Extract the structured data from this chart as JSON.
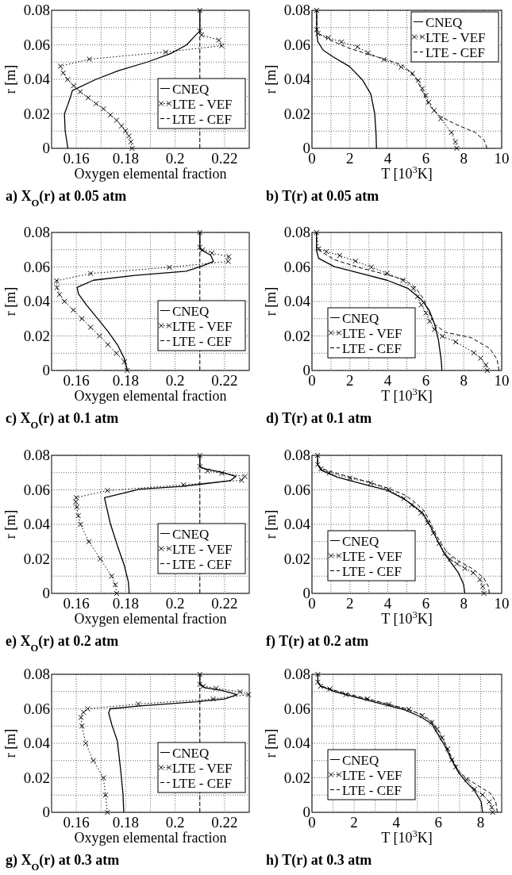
{
  "chart_data": [
    {
      "type": "line",
      "title": "a) X$_{O}$(r) at 0.05 atm",
      "xlabel": "Oxygen elemental fraction",
      "ylabel": "r [m]",
      "xlim": [
        0.15,
        0.23
      ],
      "ylim": [
        0,
        0.08
      ],
      "xticks": [
        0.16,
        {
          "value": 0.17,
          "label": null
        },
        0.18,
        {
          "value": 0.19,
          "label": null
        },
        0.2,
        {
          "value": 0.21,
          "label": null
        },
        0.22
      ],
      "yticks": [
        0,
        {
          "value": 0.01,
          "label": null
        },
        0.02,
        {
          "value": 0.03,
          "label": null
        },
        0.04,
        {
          "value": 0.05,
          "label": null
        },
        0.06,
        {
          "value": 0.07,
          "label": null
        },
        0.08
      ],
      "grid": true,
      "legend": "right",
      "series": [
        {
          "name": "CNEQ",
          "color": "#000000",
          "line_style": "solid",
          "marker": "none",
          "x": [
            0.1566,
            0.1555,
            0.1552,
            0.1565,
            0.1577,
            0.1584,
            0.168,
            0.177,
            0.1887,
            0.1983,
            0.2047,
            0.2079,
            0.21,
            0.21
          ],
          "values": [
            0,
            0.01,
            0.02,
            0.025,
            0.03,
            0.0335,
            0.04,
            0.045,
            0.05,
            0.055,
            0.06,
            0.065,
            0.068,
            0.08
          ]
        },
        {
          "name": "LTE - VEF",
          "color": "#000000",
          "line_style": "dotted",
          "marker": "cross",
          "x": [
            0.1826,
            0.1821,
            0.1813,
            0.1799,
            0.1783,
            0.1763,
            0.1738,
            0.171,
            0.168,
            0.1648,
            0.1616,
            0.1589,
            0.1565,
            0.1547,
            0.1536,
            0.1653,
            0.1962,
            0.2188,
            0.2177,
            0.2107,
            0.21,
            0.21
          ],
          "values": [
            0,
            0.0038,
            0.0072,
            0.0102,
            0.013,
            0.0163,
            0.0194,
            0.0229,
            0.0259,
            0.0293,
            0.0328,
            0.0363,
            0.0399,
            0.0437,
            0.0476,
            0.0517,
            0.0558,
            0.0595,
            0.0627,
            0.0657,
            0.068,
            0.08
          ]
        },
        {
          "name": "LTE - CEF",
          "color": "#000000",
          "line_style": "dashed",
          "marker": "none",
          "x": [
            0.21,
            0.21
          ],
          "values": [
            0,
            0.08
          ]
        }
      ]
    },
    {
      "type": "line",
      "title": "b) T(r) at 0.05 atm",
      "xlabel": "T [10$^{3}$K]",
      "ylabel": "r [m]",
      "xlim": [
        0,
        10
      ],
      "ylim": [
        0,
        0.08
      ],
      "xticks": [
        0,
        {
          "value": 1,
          "label": null
        },
        2,
        {
          "value": 3,
          "label": null
        },
        4,
        {
          "value": 5,
          "label": null
        },
        6,
        {
          "value": 7,
          "label": null
        },
        8,
        {
          "value": 9,
          "label": null
        },
        10
      ],
      "yticks": [
        0,
        {
          "value": 0.01,
          "label": null
        },
        0.02,
        {
          "value": 0.03,
          "label": null
        },
        0.04,
        {
          "value": 0.05,
          "label": null
        },
        0.06,
        {
          "value": 0.07,
          "label": null
        },
        0.08
      ],
      "grid": true,
      "legend": "top right",
      "series": [
        {
          "name": "CNEQ",
          "color": "#000000",
          "line_style": "solid",
          "marker": "none",
          "x": [
            3.4,
            3.38,
            3.31,
            3.1,
            2.68,
            1.98,
            1.14,
            0.59,
            0.3,
            0.25,
            0.25
          ],
          "values": [
            0,
            0.0076,
            0.02,
            0.0315,
            0.0394,
            0.0474,
            0.0529,
            0.0569,
            0.062,
            0.068,
            0.08
          ]
        },
        {
          "name": "LTE - VEF",
          "color": "#000000",
          "line_style": "dotted",
          "marker": "cross",
          "x": [
            7.63,
            7.56,
            7.35,
            6.79,
            6.44,
            6.16,
            6.0,
            5.82,
            5.61,
            5.3,
            4.7,
            3.79,
            2.96,
            2.4,
            1.56,
            0.86,
            0.31,
            0.25,
            0.25
          ],
          "values": [
            0,
            0.0037,
            0.0092,
            0.0172,
            0.0219,
            0.0267,
            0.0307,
            0.0347,
            0.0394,
            0.0434,
            0.0471,
            0.0514,
            0.0553,
            0.0588,
            0.0617,
            0.0641,
            0.0665,
            0.0688,
            0.08
          ]
        },
        {
          "name": "LTE - CEF",
          "color": "#000000",
          "line_style": "dashed",
          "marker": "none",
          "x": [
            9.23,
            9.09,
            8.61,
            7.56,
            6.72,
            6.16,
            5.89,
            5.54,
            5.19,
            4.77,
            3.93,
            2.96,
            1.84,
            0.86,
            0.31,
            0.25,
            0.25
          ],
          "values": [
            0,
            0.0045,
            0.0092,
            0.014,
            0.0188,
            0.0251,
            0.0315,
            0.0394,
            0.0442,
            0.0482,
            0.0514,
            0.0545,
            0.0585,
            0.0633,
            0.0668,
            0.07,
            0.08
          ]
        }
      ]
    },
    {
      "type": "line",
      "title": "c) X$_{O}$(r) at 0.1 atm",
      "xlabel": "Oxygen elemental fraction",
      "ylabel": "r [m]",
      "xlim": [
        0.15,
        0.23
      ],
      "ylim": [
        0,
        0.08
      ],
      "xticks": [
        0.16,
        {
          "value": 0.17,
          "label": null
        },
        0.18,
        {
          "value": 0.19,
          "label": null
        },
        0.2,
        {
          "value": 0.21,
          "label": null
        },
        0.22
      ],
      "yticks": [
        0,
        {
          "value": 0.01,
          "label": null
        },
        0.02,
        {
          "value": 0.03,
          "label": null
        },
        0.04,
        {
          "value": 0.05,
          "label": null
        },
        0.06,
        {
          "value": 0.07,
          "label": null
        },
        0.08
      ],
      "grid": true,
      "legend": "right",
      "series": [
        {
          "name": "CNEQ",
          "color": "#000000",
          "line_style": "solid",
          "marker": "none",
          "x": [
            0.1807,
            0.1794,
            0.1767,
            0.1729,
            0.1685,
            0.1641,
            0.1609,
            0.1603,
            0.1669,
            0.1838,
            0.2045,
            0.2111,
            0.2155,
            0.2144,
            0.2105,
            0.21,
            0.21
          ],
          "values": [
            0,
            0.007,
            0.0148,
            0.0225,
            0.0303,
            0.038,
            0.0443,
            0.0481,
            0.0523,
            0.0551,
            0.0575,
            0.0606,
            0.0632,
            0.0668,
            0.0699,
            0.0714,
            0.08
          ]
        },
        {
          "name": "LTE - VEF",
          "color": "#000000",
          "line_style": "dotted",
          "marker": "cross",
          "x": [
            0.1806,
            0.1795,
            0.1762,
            0.1728,
            0.1694,
            0.1658,
            0.1623,
            0.1588,
            0.1552,
            0.1532,
            0.1522,
            0.152,
            0.1658,
            0.1977,
            0.2215,
            0.2217,
            0.2149,
            0.2111,
            0.21,
            0.21
          ],
          "values": [
            0,
            0.005,
            0.01,
            0.015,
            0.02,
            0.025,
            0.03,
            0.035,
            0.04,
            0.044,
            0.048,
            0.052,
            0.0562,
            0.0598,
            0.0632,
            0.066,
            0.068,
            0.0699,
            0.0714,
            0.08
          ]
        },
        {
          "name": "LTE - CEF",
          "color": "#000000",
          "line_style": "dashed",
          "marker": "none",
          "x": [
            0.21,
            0.21
          ],
          "values": [
            0,
            0.08
          ]
        }
      ]
    },
    {
      "type": "line",
      "title": "d) T(r) at 0.1 atm",
      "xlabel": "T [10$^{3}$K]",
      "ylabel": "r [m]",
      "xlim": [
        0,
        10
      ],
      "ylim": [
        0,
        0.08
      ],
      "xticks": [
        0,
        {
          "value": 1,
          "label": null
        },
        2,
        {
          "value": 3,
          "label": null
        },
        4,
        {
          "value": 5,
          "label": null
        },
        6,
        {
          "value": 7,
          "label": null
        },
        8,
        {
          "value": 9,
          "label": null
        },
        10
      ],
      "yticks": [
        0,
        {
          "value": 0.01,
          "label": null
        },
        0.02,
        {
          "value": 0.03,
          "label": null
        },
        0.04,
        {
          "value": 0.05,
          "label": null
        },
        0.06,
        {
          "value": 0.07,
          "label": null
        },
        0.08
      ],
      "grid": true,
      "legend": "bottom left",
      "series": [
        {
          "name": "CNEQ",
          "color": "#000000",
          "line_style": "solid",
          "marker": "none",
          "x": [
            6.85,
            6.81,
            6.67,
            6.46,
            6.18,
            5.76,
            5.07,
            3.96,
            2.57,
            1.18,
            0.35,
            0.24,
            0.24
          ],
          "values": [
            0,
            0.0063,
            0.0174,
            0.0269,
            0.0349,
            0.0412,
            0.0475,
            0.0523,
            0.0563,
            0.0602,
            0.065,
            0.0697,
            0.08
          ]
        },
        {
          "name": "LTE - VEF",
          "color": "#000000",
          "line_style": "dotted",
          "marker": "cross",
          "x": [
            9.24,
            9.17,
            8.89,
            8.54,
            7.57,
            6.88,
            6.46,
            6.21,
            6.01,
            5.76,
            5.56,
            5.35,
            4.79,
            3.96,
            3.13,
            2.29,
            1.46,
            0.76,
            0.35,
            0.24
          ],
          "values": [
            0,
            0.0032,
            0.0071,
            0.0103,
            0.0166,
            0.0198,
            0.0238,
            0.0285,
            0.0333,
            0.038,
            0.0428,
            0.0475,
            0.0523,
            0.0563,
            0.0599,
            0.0634,
            0.0666,
            0.0689,
            0.0705,
            0.08
          ]
        },
        {
          "name": "LTE - CEF",
          "color": "#000000",
          "line_style": "dashed",
          "marker": "none",
          "x": [
            9.86,
            9.76,
            9.38,
            8.4,
            7.01,
            6.46,
            6.18,
            5.9,
            5.49,
            4.93,
            3.96,
            2.57,
            1.18,
            0.49,
            0.24,
            0.24
          ],
          "values": [
            0,
            0.0063,
            0.0127,
            0.019,
            0.0222,
            0.0269,
            0.0333,
            0.0412,
            0.0475,
            0.0523,
            0.0555,
            0.0594,
            0.0642,
            0.0689,
            0.0705,
            0.08
          ]
        }
      ]
    },
    {
      "type": "line",
      "title": "e) X$_{O}$(r) at 0.2 atm",
      "xlabel": "Oxygen elemental fraction",
      "ylabel": "r [m]",
      "xlim": [
        0.15,
        0.23
      ],
      "ylim": [
        0,
        0.08
      ],
      "xticks": [
        0.16,
        {
          "value": 0.17,
          "label": null
        },
        0.18,
        {
          "value": 0.19,
          "label": null
        },
        0.2,
        {
          "value": 0.21,
          "label": null
        },
        0.22
      ],
      "yticks": [
        0,
        {
          "value": 0.01,
          "label": null
        },
        0.02,
        {
          "value": 0.03,
          "label": null
        },
        0.04,
        {
          "value": 0.05,
          "label": null
        },
        0.06,
        {
          "value": 0.07,
          "label": null
        },
        0.08
      ],
      "grid": true,
      "legend": "right",
      "series": [
        {
          "name": "CNEQ",
          "color": "#000000",
          "line_style": "solid",
          "marker": "none",
          "x": [
            0.1814,
            0.1811,
            0.1794,
            0.1766,
            0.1737,
            0.1714,
            0.1857,
            0.2029,
            0.2223,
            0.2246,
            0.2189,
            0.212,
            0.21,
            0.21
          ],
          "values": [
            0,
            0.0065,
            0.0163,
            0.0278,
            0.0408,
            0.0555,
            0.0604,
            0.062,
            0.0653,
            0.0678,
            0.0702,
            0.0722,
            0.0735,
            0.08
          ]
        },
        {
          "name": "LTE - VEF",
          "color": "#000000",
          "line_style": "dotted",
          "marker": "cross",
          "x": [
            0.1763,
            0.1758,
            0.1743,
            0.1697,
            0.1651,
            0.1617,
            0.1608,
            0.1602,
            0.1598,
            0.16,
            0.1726,
            0.2034,
            0.2269,
            0.2282,
            0.2189,
            0.2131,
            0.21,
            0.21
          ],
          "values": [
            0,
            0.005,
            0.01,
            0.02,
            0.03,
            0.04,
            0.045,
            0.05,
            0.053,
            0.0555,
            0.0596,
            0.0629,
            0.0656,
            0.0678,
            0.0697,
            0.071,
            0.0735,
            0.08
          ]
        },
        {
          "name": "LTE - CEF",
          "color": "#000000",
          "line_style": "dashed",
          "marker": "none",
          "x": [
            0.21,
            0.21
          ],
          "values": [
            0,
            0.08
          ]
        }
      ]
    },
    {
      "type": "line",
      "title": "f) T(r) at 0.2 atm",
      "xlabel": "T [10$^{3}$K]",
      "ylabel": "r [m]",
      "xlim": [
        0,
        10
      ],
      "ylim": [
        0,
        0.08
      ],
      "xticks": [
        0,
        {
          "value": 1,
          "label": null
        },
        2,
        {
          "value": 3,
          "label": null
        },
        4,
        {
          "value": 5,
          "label": null
        },
        6,
        {
          "value": 7,
          "label": null
        },
        8,
        {
          "value": 9,
          "label": null
        },
        10
      ],
      "yticks": [
        0,
        {
          "value": 0.01,
          "label": null
        },
        0.02,
        {
          "value": 0.03,
          "label": null
        },
        0.04,
        {
          "value": 0.05,
          "label": null
        },
        0.06,
        {
          "value": 0.07,
          "label": null
        },
        0.08
      ],
      "grid": true,
      "legend": "bottom left",
      "series": [
        {
          "name": "CNEQ",
          "color": "#000000",
          "line_style": "solid",
          "marker": "none",
          "x": [
            8.06,
            7.99,
            7.72,
            7.29,
            7.0,
            6.64,
            6.28,
            5.84,
            5.26,
            4.83,
            3.96,
            2.8,
            1.35,
            0.48,
            0.3,
            0.3
          ],
          "values": [
            0,
            0.0053,
            0.0119,
            0.0185,
            0.0226,
            0.0301,
            0.0383,
            0.0466,
            0.0516,
            0.0549,
            0.0598,
            0.0631,
            0.0673,
            0.0714,
            0.0747,
            0.08
          ]
        },
        {
          "name": "LTE - VEF",
          "color": "#000000",
          "line_style": "dotted",
          "marker": "cross",
          "x": [
            9.06,
            9.0,
            8.85,
            8.5,
            8.06,
            7.65,
            7.29,
            7.0,
            6.7,
            6.4,
            6.1,
            5.75,
            5.25,
            4.85,
            4.03,
            3.09,
            2.0,
            0.91,
            0.48,
            0.3,
            0.3
          ],
          "values": [
            0,
            0.004,
            0.008,
            0.012,
            0.0145,
            0.0172,
            0.0198,
            0.0232,
            0.029,
            0.035,
            0.0408,
            0.0466,
            0.0512,
            0.055,
            0.0602,
            0.064,
            0.0668,
            0.0698,
            0.0722,
            0.0747,
            0.08
          ]
        },
        {
          "name": "LTE - CEF",
          "color": "#000000",
          "line_style": "dashed",
          "marker": "none",
          "x": [
            9.35,
            9.3,
            9.05,
            8.5,
            7.7,
            7.1,
            6.75,
            6.45,
            6.2,
            5.9,
            5.4,
            4.9,
            4.0,
            3.0,
            2.0,
            1.0,
            0.5,
            0.3,
            0.3
          ],
          "values": [
            0,
            0.004,
            0.009,
            0.014,
            0.019,
            0.024,
            0.03,
            0.036,
            0.042,
            0.048,
            0.053,
            0.057,
            0.061,
            0.0645,
            0.0675,
            0.0705,
            0.0725,
            0.0747,
            0.08
          ]
        }
      ]
    },
    {
      "type": "line",
      "title": "g) X$_{O}$(r) at 0.3 atm",
      "xlabel": "Oxygen elemental fraction",
      "ylabel": "r [m]",
      "xlim": [
        0.15,
        0.23
      ],
      "ylim": [
        0,
        0.08
      ],
      "xticks": [
        0.16,
        {
          "value": 0.17,
          "label": null
        },
        0.18,
        {
          "value": 0.19,
          "label": null
        },
        0.2,
        {
          "value": 0.21,
          "label": null
        },
        0.22
      ],
      "yticks": [
        0,
        {
          "value": 0.01,
          "label": null
        },
        0.02,
        {
          "value": 0.03,
          "label": null
        },
        0.04,
        {
          "value": 0.05,
          "label": null
        },
        0.06,
        {
          "value": 0.07,
          "label": null
        },
        0.08
      ],
      "grid": true,
      "legend": "right",
      "series": [
        {
          "name": "CNEQ",
          "color": "#000000",
          "line_style": "solid",
          "marker": "none",
          "x": [
            0.1792,
            0.1789,
            0.1779,
            0.1766,
            0.1743,
            0.1731,
            0.1737,
            0.1857,
            0.2086,
            0.22,
            0.2251,
            0.2189,
            0.212,
            0.21,
            0.21
          ],
          "values": [
            0,
            0.0106,
            0.0252,
            0.0414,
            0.0511,
            0.0576,
            0.06,
            0.0617,
            0.0641,
            0.0657,
            0.0682,
            0.0706,
            0.0722,
            0.0739,
            0.08
          ]
        },
        {
          "name": "LTE - VEF",
          "color": "#000000",
          "line_style": "dotted",
          "marker": "cross",
          "x": [
            0.1726,
            0.1718,
            0.171,
            0.1669,
            0.1638,
            0.1623,
            0.1619,
            0.1629,
            0.1646,
            0.1851,
            0.2154,
            0.2297,
            0.2263,
            0.2166,
            0.2114,
            0.21,
            0.21
          ],
          "values": [
            0,
            0.01,
            0.02,
            0.03,
            0.04,
            0.05,
            0.055,
            0.058,
            0.06,
            0.0628,
            0.0657,
            0.0682,
            0.0698,
            0.0719,
            0.0731,
            0.0742,
            0.08
          ]
        },
        {
          "name": "LTE - CEF",
          "color": "#000000",
          "line_style": "dashed",
          "marker": "none",
          "x": [
            0.21,
            0.21
          ],
          "values": [
            0,
            0.08
          ]
        }
      ]
    },
    {
      "type": "line",
      "title": "h) T(r) at 0.3 atm",
      "xlabel": "T [10$^{3}$K]",
      "ylabel": "r [m]",
      "xlim": [
        0,
        9
      ],
      "ylim": [
        0,
        0.08
      ],
      "xticks": [
        0,
        {
          "value": 1,
          "label": null
        },
        2,
        {
          "value": 3,
          "label": null
        },
        4,
        {
          "value": 5,
          "label": null
        },
        6,
        {
          "value": 7,
          "label": null
        },
        8
      ],
      "yticks": [
        0,
        {
          "value": 0.01,
          "label": null
        },
        0.02,
        {
          "value": 0.03,
          "label": null
        },
        0.04,
        {
          "value": 0.05,
          "label": null
        },
        0.06,
        {
          "value": 0.07,
          "label": null
        },
        0.08
      ],
      "grid": true,
      "legend": "bottom left",
      "series": [
        {
          "name": "CNEQ",
          "color": "#000000",
          "line_style": "solid",
          "marker": "none",
          "x": [
            8.09,
            8.03,
            7.71,
            7.33,
            6.95,
            6.63,
            6.31,
            6.0,
            5.68,
            5.17,
            4.41,
            3.39,
            2.37,
            1.1,
            0.41,
            0.28,
            0.28
          ],
          "values": [
            0,
            0.0061,
            0.0126,
            0.0174,
            0.0231,
            0.0303,
            0.0384,
            0.0448,
            0.0513,
            0.0553,
            0.0594,
            0.0626,
            0.0658,
            0.0698,
            0.0731,
            0.0755,
            0.08
          ]
        },
        {
          "name": "LTE - VEF",
          "color": "#000000",
          "line_style": "dotted",
          "marker": "cross",
          "x": [
            8.57,
            8.53,
            8.41,
            8.09,
            7.71,
            7.33,
            6.82,
            6.63,
            6.44,
            6.18,
            5.93,
            5.68,
            5.23,
            4.6,
            3.64,
            2.63,
            1.61,
            0.85,
            0.41,
            0.28,
            0.28
          ],
          "values": [
            0,
            0.0029,
            0.0061,
            0.0102,
            0.0134,
            0.019,
            0.0263,
            0.0303,
            0.0368,
            0.0432,
            0.0481,
            0.0521,
            0.0561,
            0.0597,
            0.0626,
            0.0658,
            0.0682,
            0.0715,
            0.0731,
            0.0755,
            0.08
          ]
        },
        {
          "name": "LTE - CEF",
          "color": "#000000",
          "line_style": "dashed",
          "marker": "none",
          "x": [
            8.79,
            8.72,
            8.47,
            7.83,
            7.33,
            6.95,
            6.69,
            6.37,
            6.06,
            5.68,
            5.17,
            4.41,
            3.39,
            2.37,
            1.1,
            0.47,
            0.28,
            0.28
          ],
          "values": [
            0,
            0.0061,
            0.011,
            0.0158,
            0.0198,
            0.0239,
            0.0303,
            0.0384,
            0.0465,
            0.0529,
            0.0569,
            0.0602,
            0.0634,
            0.0666,
            0.0706,
            0.0731,
            0.0755,
            0.08
          ]
        }
      ]
    }
  ]
}
